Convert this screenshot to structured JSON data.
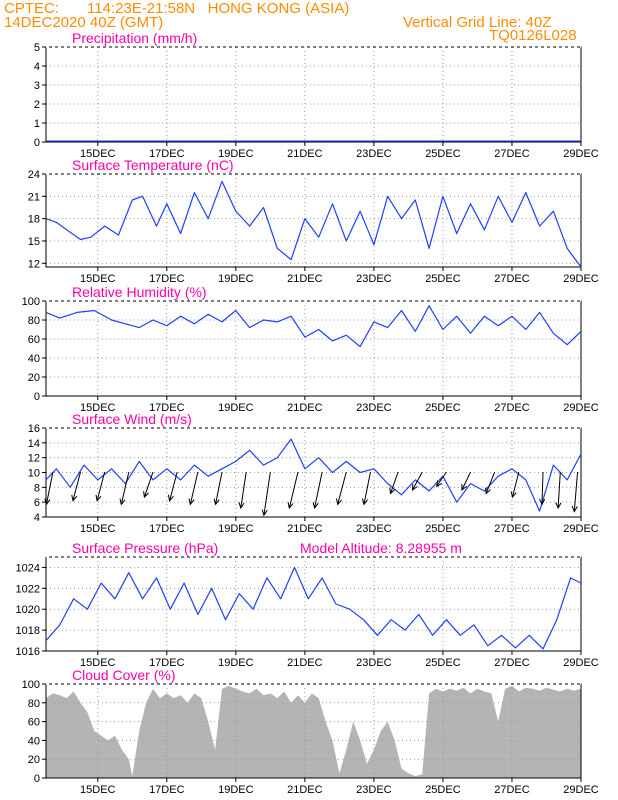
{
  "header": {
    "source": "CPTEC:",
    "location": "114:23E-21:58N   HONG KONG (ASIA)",
    "date": "14DEC2020 40Z (GMT)",
    "grid_note": "Vertical Grid Line: 40Z",
    "code": "TQ0126L028"
  },
  "colors": {
    "header": "#ff8c00",
    "title": "#ff00aa",
    "line": "#1f3fff",
    "cloud": "#b4b4b4",
    "grid": "#9a9a9a",
    "wind_arrow": "#000000"
  },
  "x_tick_labels": [
    "15DEC",
    "17DEC",
    "19DEC",
    "21DEC",
    "23DEC",
    "25DEC",
    "27DEC",
    "29DEC"
  ],
  "chart_data": [
    {
      "id": "precip",
      "type": "bar",
      "title": "Precipitation (mm/h)",
      "ylim": [
        0,
        5
      ],
      "yticks": [
        0,
        1,
        2,
        3,
        4,
        5
      ],
      "x": [
        26.5,
        26.6,
        26.7,
        26.8,
        26.9,
        27.0,
        27.1,
        27.2,
        27.3,
        27.4,
        27.5,
        27.6
      ],
      "values": [
        0.05,
        0.1,
        0.05,
        0.15,
        0.1,
        0.2,
        0.25,
        0.35,
        0.2,
        0.4,
        0.15,
        0.05
      ]
    },
    {
      "id": "temp",
      "type": "line",
      "title": "Surface Temperature (nC)",
      "ylim": [
        11.5,
        24
      ],
      "yticks": [
        12,
        15,
        18,
        21,
        24
      ],
      "x": [
        -0.5,
        -0.2,
        0.1,
        0.5,
        0.8,
        1.2,
        1.6,
        2.0,
        2.3,
        2.7,
        3.0,
        3.4,
        3.8,
        4.2,
        4.6,
        5.0,
        5.4,
        5.8,
        6.2,
        6.6,
        7.0,
        7.4,
        7.8,
        8.2,
        8.6,
        9.0,
        9.4,
        9.8,
        10.2,
        10.6,
        11.0,
        11.4,
        11.8,
        12.2,
        12.6,
        13.0,
        13.4,
        13.8,
        14.2,
        14.6,
        15.0
      ],
      "values": [
        18,
        17.5,
        16.5,
        15.2,
        15.5,
        17,
        15.8,
        20.5,
        21,
        17,
        20,
        16,
        21.5,
        18,
        23,
        19,
        17,
        19.5,
        14,
        12.5,
        18,
        15.5,
        20,
        15,
        19,
        14.5,
        21,
        18,
        20.5,
        14,
        21,
        16,
        20,
        16.5,
        21,
        17.5,
        21.5,
        17,
        19,
        14,
        11.5
      ]
    },
    {
      "id": "rh",
      "type": "line",
      "title": "Relative Humidity (%)",
      "ylim": [
        0,
        100
      ],
      "yticks": [
        0,
        20,
        40,
        60,
        80,
        100
      ],
      "x": [
        -0.5,
        -0.1,
        0.4,
        0.9,
        1.4,
        1.8,
        2.2,
        2.6,
        3.0,
        3.4,
        3.8,
        4.2,
        4.6,
        5.0,
        5.4,
        5.8,
        6.2,
        6.6,
        7.0,
        7.4,
        7.8,
        8.2,
        8.6,
        9.0,
        9.4,
        9.8,
        10.2,
        10.6,
        11.0,
        11.4,
        11.8,
        12.2,
        12.6,
        13.0,
        13.4,
        13.8,
        14.2,
        14.6,
        15.0
      ],
      "values": [
        88,
        82,
        88,
        90,
        80,
        76,
        72,
        80,
        74,
        84,
        76,
        86,
        78,
        90,
        72,
        80,
        78,
        84,
        62,
        70,
        58,
        64,
        52,
        78,
        72,
        90,
        68,
        95,
        70,
        84,
        66,
        84,
        74,
        84,
        70,
        88,
        66,
        54,
        68
      ]
    },
    {
      "id": "wind",
      "type": "line",
      "title": "Surface Wind (m/s)",
      "ylim": [
        4,
        16
      ],
      "yticks": [
        4,
        6,
        8,
        10,
        12,
        14,
        16
      ],
      "x": [
        -0.5,
        -0.2,
        0.2,
        0.6,
        1.0,
        1.4,
        1.8,
        2.2,
        2.6,
        3.0,
        3.4,
        3.8,
        4.2,
        4.6,
        5.0,
        5.4,
        5.8,
        6.2,
        6.6,
        7.0,
        7.4,
        7.8,
        8.2,
        8.6,
        9.0,
        9.4,
        9.8,
        10.2,
        10.6,
        11.0,
        11.4,
        11.8,
        12.2,
        12.6,
        13.0,
        13.4,
        13.8,
        14.2,
        14.6,
        15.0
      ],
      "values": [
        9,
        10.5,
        8,
        11,
        9,
        10.5,
        8.5,
        11.5,
        9,
        10.5,
        9,
        11,
        9.5,
        10.5,
        11.5,
        13,
        11,
        12,
        14.5,
        10.5,
        12,
        10,
        11.5,
        10,
        10.5,
        8.5,
        7,
        9,
        7.5,
        9.5,
        6,
        8.5,
        7.5,
        9.5,
        10.5,
        9,
        4.8,
        11,
        9,
        12.5
      ]
    },
    {
      "id": "pressure",
      "type": "line",
      "title": "Surface Pressure (hPa)",
      "annotation": "Model Altitude: 8.28955 m",
      "ylim": [
        1016,
        1025
      ],
      "yticks": [
        1016,
        1018,
        1020,
        1022,
        1024
      ],
      "x": [
        -0.5,
        -0.1,
        0.3,
        0.7,
        1.1,
        1.5,
        1.9,
        2.3,
        2.7,
        3.1,
        3.5,
        3.9,
        4.3,
        4.7,
        5.1,
        5.5,
        5.9,
        6.3,
        6.7,
        7.1,
        7.5,
        7.9,
        8.3,
        8.7,
        9.1,
        9.5,
        9.9,
        10.3,
        10.7,
        11.1,
        11.5,
        11.9,
        12.3,
        12.7,
        13.1,
        13.5,
        13.9,
        14.3,
        14.7,
        15.0
      ],
      "values": [
        1017,
        1018.5,
        1021,
        1020,
        1022.5,
        1021,
        1023.5,
        1021,
        1023,
        1020,
        1022.5,
        1019.5,
        1022,
        1019,
        1021.5,
        1020,
        1023,
        1021,
        1024,
        1021,
        1023,
        1020.5,
        1020,
        1019,
        1017.5,
        1019,
        1018,
        1019.5,
        1017.5,
        1019,
        1017.5,
        1018.5,
        1016.5,
        1017.5,
        1016.3,
        1017.5,
        1016.2,
        1019,
        1023,
        1022.5
      ]
    },
    {
      "id": "cloud",
      "type": "area",
      "title": "Cloud Cover (%)",
      "ylim": [
        0,
        100
      ],
      "yticks": [
        0,
        20,
        40,
        60,
        80,
        100
      ],
      "x": [
        -0.5,
        -0.3,
        -0.1,
        0.1,
        0.3,
        0.5,
        0.7,
        0.9,
        1.1,
        1.3,
        1.5,
        1.7,
        1.9,
        2.0,
        2.2,
        2.4,
        2.6,
        2.8,
        3.0,
        3.2,
        3.4,
        3.6,
        3.8,
        4.0,
        4.2,
        4.4,
        4.6,
        4.8,
        5.0,
        5.2,
        5.4,
        5.6,
        5.8,
        6.0,
        6.2,
        6.4,
        6.6,
        6.8,
        7.0,
        7.2,
        7.4,
        7.6,
        7.8,
        8.0,
        8.2,
        8.4,
        8.6,
        8.8,
        9.0,
        9.2,
        9.4,
        9.6,
        9.8,
        10.0,
        10.2,
        10.4,
        10.6,
        10.8,
        11.0,
        11.2,
        11.4,
        11.6,
        11.8,
        12.0,
        12.2,
        12.4,
        12.6,
        12.8,
        13.0,
        13.2,
        13.4,
        13.6,
        13.8,
        14.0,
        14.2,
        14.4,
        14.6,
        14.8,
        15.0
      ],
      "values": [
        85,
        90,
        88,
        85,
        92,
        80,
        70,
        50,
        45,
        40,
        45,
        30,
        20,
        2,
        50,
        80,
        95,
        85,
        90,
        85,
        88,
        80,
        90,
        85,
        60,
        30,
        95,
        98,
        95,
        92,
        90,
        95,
        88,
        90,
        85,
        92,
        80,
        88,
        80,
        90,
        85,
        60,
        40,
        5,
        30,
        60,
        40,
        15,
        30,
        50,
        60,
        40,
        10,
        5,
        2,
        4,
        90,
        95,
        92,
        95,
        93,
        96,
        90,
        95,
        92,
        90,
        60,
        95,
        98,
        92,
        96,
        95,
        93,
        96,
        94,
        92,
        95,
        93,
        95
      ]
    },
    {
      "id": "wind_vectors",
      "type": "vector",
      "x": [
        -0.3,
        0.5,
        1.2,
        1.9,
        2.6,
        3.3,
        3.9,
        4.6,
        5.3,
        6.0,
        6.8,
        7.5,
        8.2,
        8.9,
        9.7,
        10.4,
        11.1,
        11.8,
        12.5,
        13.2,
        13.9,
        14.4,
        14.9
      ],
      "u": [
        -3,
        -3.5,
        -3.5,
        -3.5,
        -4,
        -3.5,
        -3.5,
        -3,
        -2.5,
        -3,
        -4,
        -3.5,
        -4,
        -3,
        -3.5,
        -4.5,
        -4.5,
        -4,
        -4,
        -3,
        -0.5,
        -1,
        -1.5
      ],
      "v": [
        -9,
        -8,
        -8,
        -9,
        -7,
        -8,
        -9,
        -9,
        -10,
        -12,
        -10,
        -10,
        -9,
        -9,
        -6,
        -5,
        -4,
        -5,
        -6,
        -7,
        -9,
        -10,
        -11
      ]
    }
  ]
}
